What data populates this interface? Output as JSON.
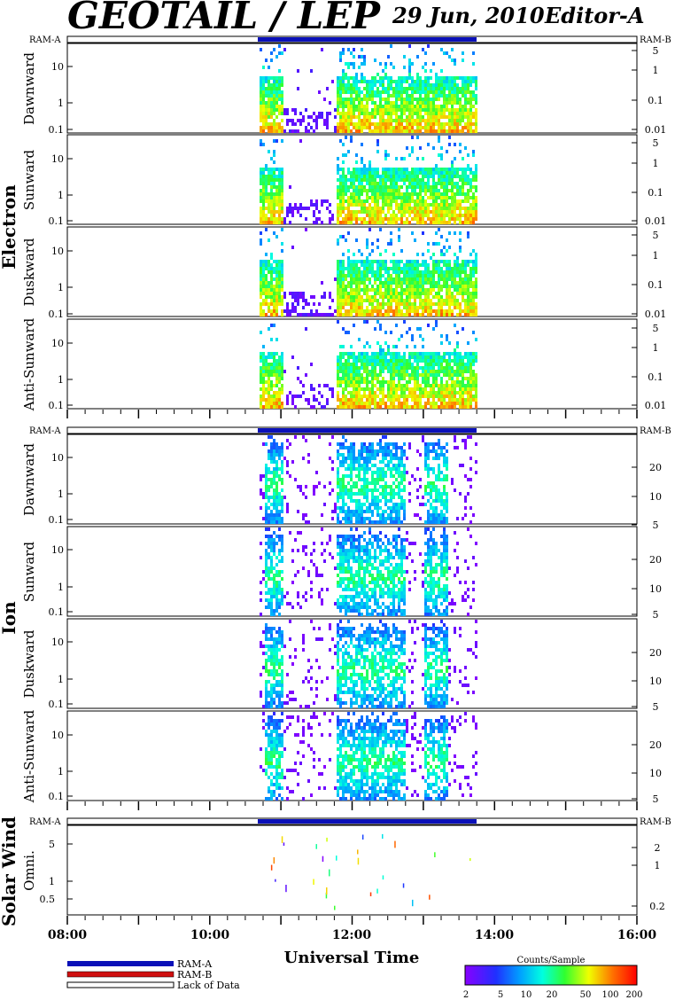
{
  "header": {
    "title": "GEOTAIL / LEP",
    "date": "29 Jun, 2010",
    "editor": "Editor-A"
  },
  "groups": {
    "electron": "Electron",
    "ion": "Ion",
    "solar_wind": "Solar Wind"
  },
  "mode_labels": {
    "left": "RAM-A",
    "right": "RAM-B"
  },
  "electron_panels": [
    {
      "label": "Dawnward"
    },
    {
      "label": "Sunward"
    },
    {
      "label": "Duskward"
    },
    {
      "label": "Anti-Sunward"
    }
  ],
  "ion_panels": [
    {
      "label": "Dawnward"
    },
    {
      "label": "Sunward"
    },
    {
      "label": "Duskward"
    },
    {
      "label": "Anti-Sunward"
    }
  ],
  "solar_wind_panel": {
    "label": "Omni."
  },
  "axes": {
    "electron_left_ticks": [
      "10",
      "1",
      "0.1"
    ],
    "electron_right_ticks": [
      "5",
      "1",
      "0.1",
      "0.01"
    ],
    "ion_left_ticks": [
      "10",
      "1",
      "0.1"
    ],
    "ion_right_ticks": [
      "20",
      "10",
      "5"
    ],
    "sw_left_ticks": [
      "5",
      "1",
      "0.5"
    ],
    "sw_right_ticks": [
      "2",
      "1",
      "0.2"
    ],
    "time_ticks": [
      "08:00",
      "10:00",
      "12:00",
      "14:00",
      "16:00"
    ],
    "xlabel": "Universal Time"
  },
  "legend": {
    "ram_a": "RAM-A",
    "ram_b": "RAM-B",
    "lack": "Lack of Data",
    "ram_a_color": "#0a10b8",
    "ram_b_color": "#d01010"
  },
  "colorbar": {
    "title": "Counts/Sample",
    "ticks": [
      "2",
      "5",
      "10",
      "20",
      "50",
      "100",
      "200"
    ]
  },
  "chart_data": {
    "type": "heatmap",
    "time_range": [
      "08:00",
      "16:00"
    ],
    "data_coverage": [
      "10:42",
      "13:45"
    ],
    "ram_mode": "RAM-A",
    "electron_activity_intervals": [
      [
        "10:42",
        "11:00"
      ],
      [
        "11:45",
        "13:45"
      ]
    ],
    "ion_activity_intervals": [
      [
        "10:45",
        "11:00"
      ],
      [
        "11:45",
        "12:45"
      ],
      [
        "13:00",
        "13:20"
      ]
    ],
    "colorscale": "jet",
    "colorscale_range": [
      2,
      200
    ],
    "colorscale_log": true
  }
}
